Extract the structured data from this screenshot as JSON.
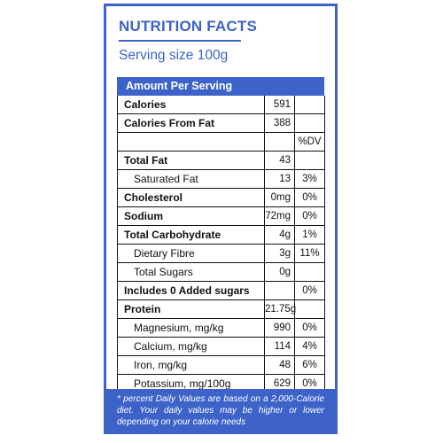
{
  "label": {
    "title": "NUTRITION FACTS",
    "serving_size": "Serving size 100g",
    "amount_header": "Amount Per Serving",
    "dv_header": "%DV",
    "rows": [
      {
        "name": "Calories",
        "amount": "591",
        "dv": "",
        "bold": true,
        "sub": false
      },
      {
        "name": "Calories From Fat",
        "amount": "388",
        "dv": "",
        "bold": true,
        "sub": false
      },
      {
        "name": "",
        "amount": "",
        "dv": "%DV",
        "bold": false,
        "sub": false
      },
      {
        "name": "Total Fat",
        "amount": "43",
        "dv": "",
        "bold": true,
        "sub": false
      },
      {
        "name": "Saturated Fat",
        "amount": "13",
        "dv": "3%",
        "bold": false,
        "sub": true
      },
      {
        "name": "Cholesterol",
        "amount": "0mg",
        "dv": "0%",
        "bold": true,
        "sub": false
      },
      {
        "name": "Sodium",
        "amount": "72mg",
        "dv": "0%",
        "bold": true,
        "sub": false
      },
      {
        "name": "Total Carbohydrate",
        "amount": "4g",
        "dv": "1%",
        "bold": true,
        "sub": false
      },
      {
        "name": "Dietary Fibre",
        "amount": "3g",
        "dv": "11%",
        "bold": false,
        "sub": true
      },
      {
        "name": "Total Sugars",
        "amount": "0g",
        "dv": "",
        "bold": false,
        "sub": true
      },
      {
        "name": "Includes 0 Added sugars",
        "amount": "",
        "dv": "0%",
        "bold": true,
        "sub": false
      },
      {
        "name": "Protein",
        "amount": "21.75g",
        "dv": "",
        "bold": true,
        "sub": false
      },
      {
        "name": "Magnesium, mg/kg",
        "amount": "990",
        "dv": "0%",
        "bold": false,
        "sub": true
      },
      {
        "name": "Calcium, mg/kg",
        "amount": "114",
        "dv": "4%",
        "bold": false,
        "sub": true
      },
      {
        "name": "Iron, mg/kg",
        "amount": "48",
        "dv": "6%",
        "bold": false,
        "sub": true
      },
      {
        "name": "Potassium, mg/100g",
        "amount": "629",
        "dv": "0%",
        "bold": false,
        "sub": true
      }
    ],
    "footnote": "* percent Daily Values are based on a 2,000-Calorie diet. Your daily values may be higher or lower depending on your calorie needs"
  },
  "colors": {
    "accent": "#3d63c9"
  }
}
